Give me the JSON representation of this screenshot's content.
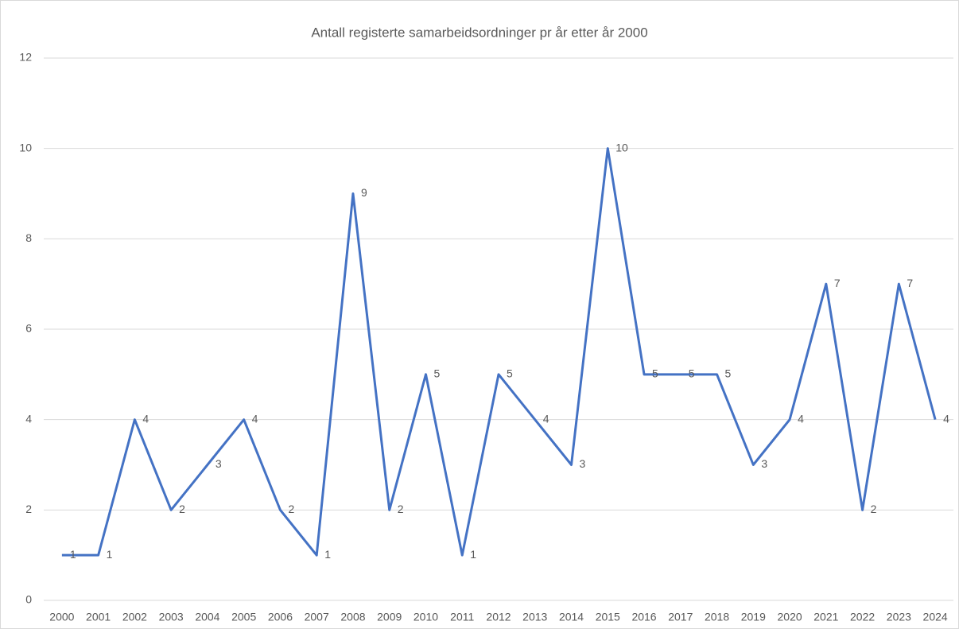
{
  "chart_data": {
    "type": "line",
    "title": "Antall registerte samarbeidsordninger pr år etter år 2000",
    "categories": [
      "2000",
      "2001",
      "2002",
      "2003",
      "2004",
      "2005",
      "2006",
      "2007",
      "2008",
      "2009",
      "2010",
      "2011",
      "2012",
      "2013",
      "2014",
      "2015",
      "2016",
      "2017",
      "2018",
      "2019",
      "2020",
      "2021",
      "2022",
      "2023",
      "2024"
    ],
    "values": [
      1,
      1,
      4,
      2,
      3,
      4,
      2,
      1,
      9,
      2,
      5,
      1,
      5,
      4,
      3,
      10,
      5,
      5,
      5,
      3,
      4,
      7,
      2,
      7,
      4
    ],
    "color": "#4472c4",
    "ylim": [
      0,
      12
    ],
    "yticks": [
      0,
      2,
      4,
      6,
      8,
      10,
      12
    ],
    "grid": true,
    "data_labels": true
  }
}
